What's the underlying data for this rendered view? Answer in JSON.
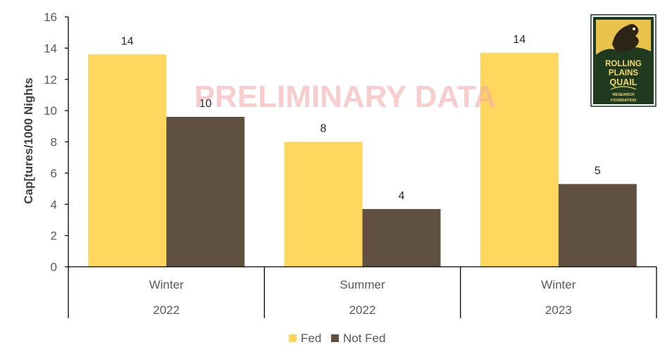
{
  "watermark": "PRELIMINARY DATA",
  "logo": {
    "line1": "ROLLING",
    "line2": "PLAINS",
    "line3": "QUAIL",
    "line4": "RESEARCH",
    "line5": "FOUNDATION"
  },
  "colors": {
    "fed": "#FFD75E",
    "not_fed": "#605040",
    "watermark": "#F3A6A6",
    "logo_bg": "#1f3a1f"
  },
  "chart_data": {
    "type": "bar",
    "ylabel": "Cap[tures/1000 Nights",
    "ylim": [
      0,
      16
    ],
    "yticks": [
      0,
      2,
      4,
      6,
      8,
      10,
      12,
      14,
      16
    ],
    "categories": [
      {
        "season": "Winter",
        "year": "2022"
      },
      {
        "season": "Summer",
        "year": "2022"
      },
      {
        "season": "Winter",
        "year": "2023"
      }
    ],
    "series": [
      {
        "name": "Fed",
        "values": [
          13.6,
          8.0,
          13.7
        ],
        "labels": [
          "14",
          "8",
          "14"
        ]
      },
      {
        "name": "Not Fed",
        "values": [
          9.6,
          3.7,
          5.3
        ],
        "labels": [
          "10",
          "4",
          "5"
        ]
      }
    ],
    "legend": "bottom",
    "grid": false
  }
}
